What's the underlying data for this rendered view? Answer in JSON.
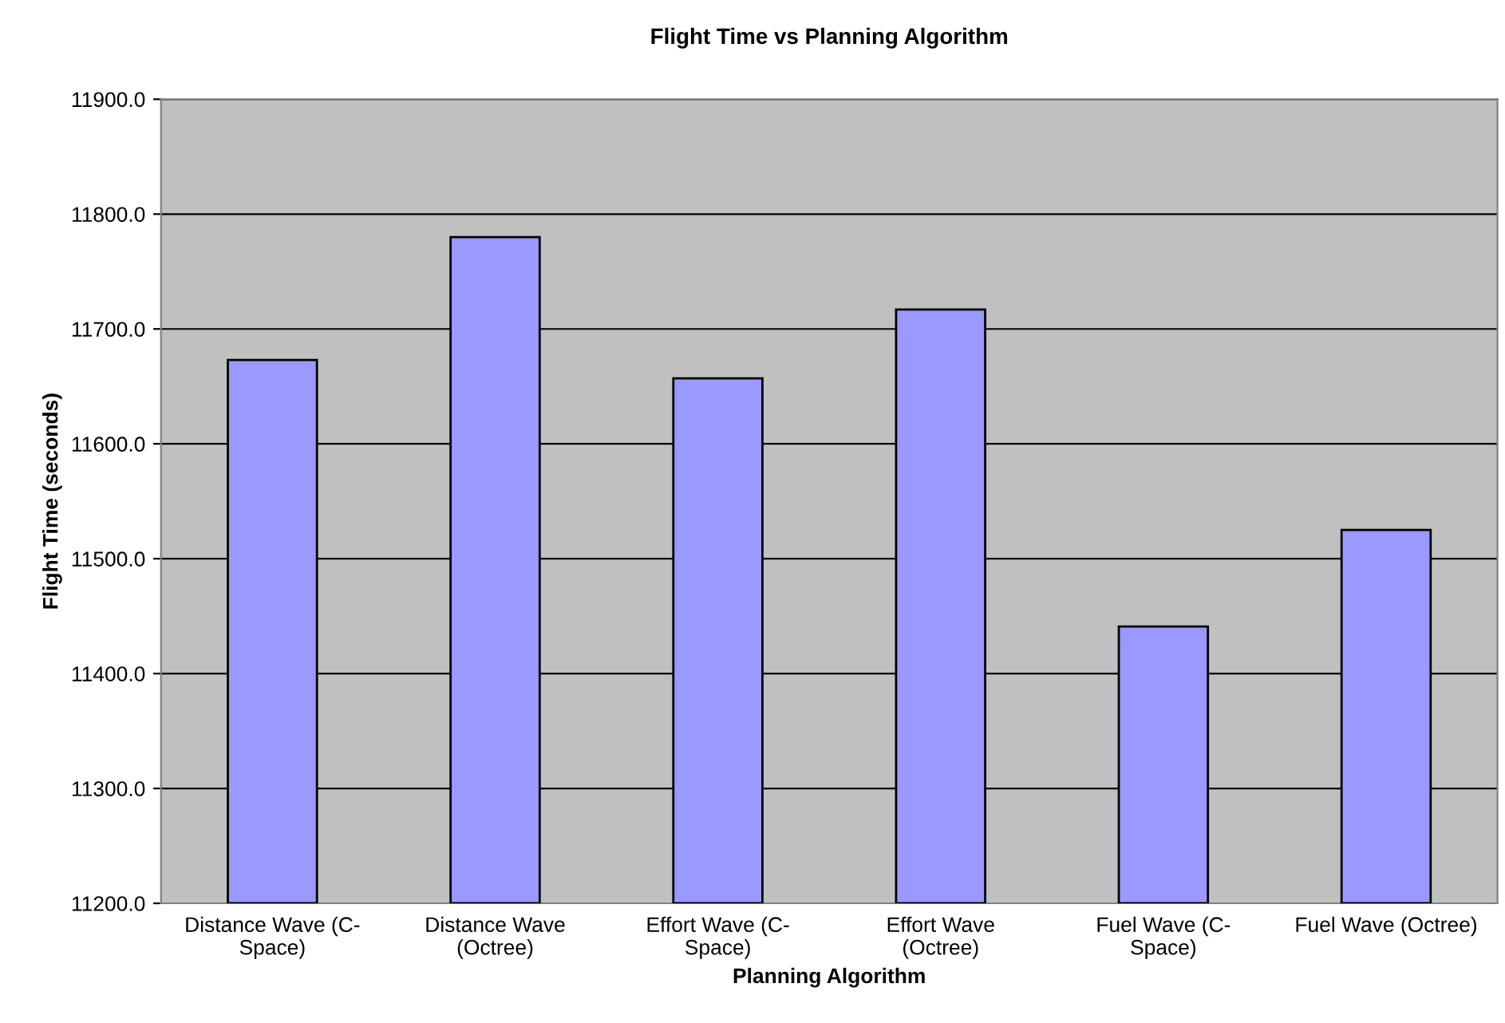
{
  "chart_data": {
    "type": "bar",
    "title": "Flight Time vs Planning Algorithm",
    "xlabel": "Planning Algorithm",
    "ylabel": "Flight Time (seconds)",
    "categories": [
      "Distance Wave (C-\nSpace)",
      "Distance Wave\n(Octree)",
      "Effort Wave (C-\nSpace)",
      "Effort Wave\n(Octree)",
      "Fuel Wave (C-\nSpace)",
      "Fuel Wave (Octree)"
    ],
    "values": [
      11673,
      11780,
      11657,
      11717,
      11441,
      11525
    ],
    "color": "#9999ff",
    "ylim": [
      11200,
      11900
    ],
    "yticks": [
      {
        "value": 11200,
        "label": "11200.0"
      },
      {
        "value": 11300,
        "label": "11300.0"
      },
      {
        "value": 11400,
        "label": "11400.0"
      },
      {
        "value": 11500,
        "label": "11500.0"
      },
      {
        "value": 11600,
        "label": "11600.0"
      },
      {
        "value": 11700,
        "label": "11700.0"
      },
      {
        "value": 11800,
        "label": "11800.0"
      },
      {
        "value": 11900,
        "label": "11900.0"
      }
    ],
    "grid": "y",
    "legend": false
  }
}
